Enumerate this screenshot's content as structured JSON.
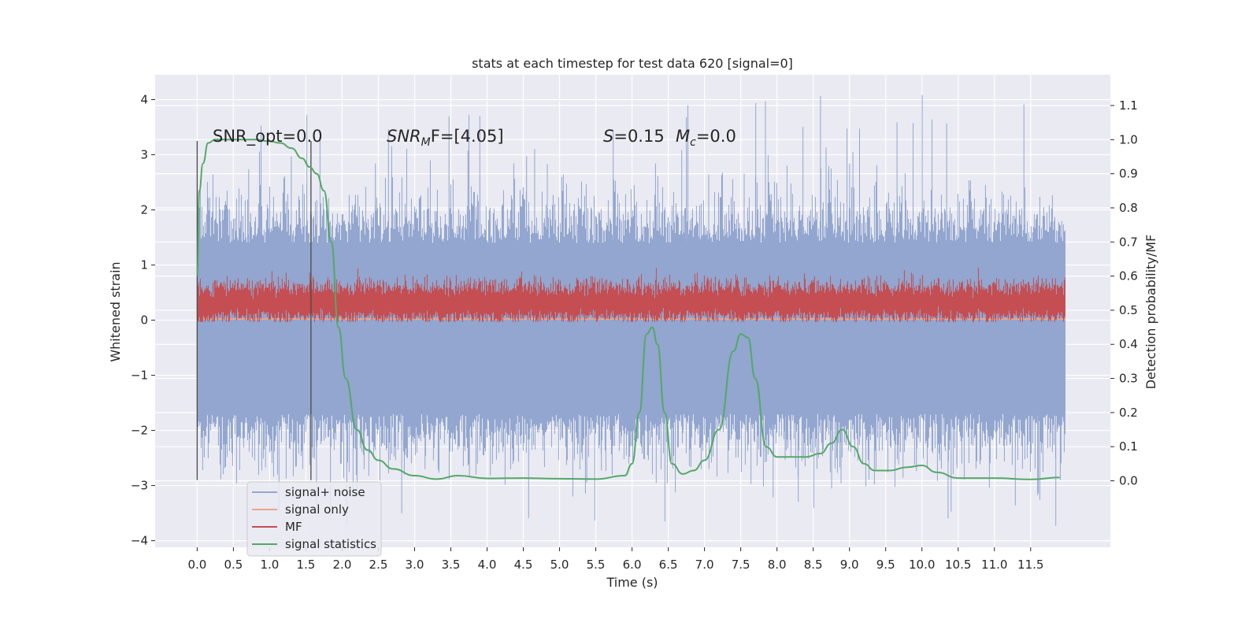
{
  "chart_data": {
    "type": "line",
    "title": "stats at each timestep for test data 620 [signal=0]",
    "xlabel": "Time (s)",
    "ylabel": "Whitened strain",
    "ylabel_right": "Detection probability/MF",
    "xlim": [
      -0.58,
      12.6
    ],
    "ylim": [
      -4.12,
      4.45
    ],
    "ylim_right": [
      -0.195,
      1.19
    ],
    "x_ticks": [
      0.0,
      0.5,
      1.0,
      1.5,
      2.0,
      2.5,
      3.0,
      3.5,
      4.0,
      4.5,
      5.0,
      5.5,
      6.0,
      6.5,
      7.0,
      7.5,
      8.0,
      8.5,
      9.0,
      9.5,
      10.0,
      10.5,
      11.0,
      11.5
    ],
    "y_ticks": [
      -4,
      -3,
      -2,
      -1,
      0,
      1,
      2,
      3,
      4
    ],
    "y_ticks_right": [
      0.0,
      0.1,
      0.2,
      0.3,
      0.4,
      0.5,
      0.6,
      0.7,
      0.8,
      0.9,
      1.0,
      1.1
    ],
    "grid": true,
    "legend_position": "lower-left",
    "annotations": {
      "snr_opt": "SNR_opt=0.0",
      "snr_mf_prefix": "SNR",
      "snr_mf_sub": "M",
      "snr_mf_rest": "F=[4.05]",
      "s_label": "S",
      "s_value": "=0.15",
      "mc_label": "M",
      "mc_sub": "c",
      "mc_value": "=0.0"
    },
    "vertical_markers_x": [
      0.0,
      1.57
    ],
    "series": [
      {
        "name": "signal+ noise",
        "color": "#92a6cf",
        "kind": "noise",
        "x_range": [
          0.0,
          11.98
        ],
        "typical_range": [
          -1.7,
          1.4
        ],
        "extremes_range": [
          -3.75,
          4.1
        ]
      },
      {
        "name": "signal only",
        "color": "#e8a58b",
        "kind": "flat",
        "x_range": [
          0.0,
          11.98
        ],
        "value": 0.02
      },
      {
        "name": "MF",
        "color": "#c44e52",
        "kind": "noise",
        "x_range": [
          0.0,
          11.98
        ],
        "typical_range": [
          0.0,
          0.75
        ],
        "extremes_range": [
          -0.03,
          1.0
        ]
      },
      {
        "name": "signal statistics",
        "color": "#55a868",
        "kind": "line",
        "axis": "right",
        "x": [
          0.0,
          0.03,
          0.08,
          0.15,
          0.25,
          0.4,
          0.6,
          0.8,
          1.0,
          1.15,
          1.3,
          1.45,
          1.55,
          1.65,
          1.75,
          1.85,
          1.95,
          2.05,
          2.2,
          2.35,
          2.5,
          2.7,
          3.0,
          3.3,
          3.6,
          4.0,
          4.5,
          5.0,
          5.5,
          5.9,
          6.0,
          6.1,
          6.2,
          6.28,
          6.35,
          6.45,
          6.55,
          6.7,
          6.85,
          7.0,
          7.2,
          7.4,
          7.5,
          7.6,
          7.7,
          7.85,
          8.0,
          8.2,
          8.4,
          8.6,
          8.75,
          8.9,
          9.05,
          9.2,
          9.35,
          9.55,
          9.8,
          10.0,
          10.2,
          10.5,
          11.0,
          11.5,
          11.9
        ],
        "y": [
          0.6,
          0.85,
          0.93,
          0.99,
          1.0,
          1.0,
          1.0,
          1.0,
          0.995,
          0.99,
          0.975,
          0.945,
          0.92,
          0.9,
          0.85,
          0.7,
          0.45,
          0.3,
          0.15,
          0.09,
          0.06,
          0.035,
          0.015,
          0.005,
          0.015,
          0.007,
          0.008,
          0.006,
          0.005,
          0.015,
          0.05,
          0.2,
          0.43,
          0.45,
          0.4,
          0.2,
          0.05,
          0.02,
          0.03,
          0.06,
          0.15,
          0.38,
          0.43,
          0.42,
          0.3,
          0.1,
          0.07,
          0.07,
          0.07,
          0.08,
          0.11,
          0.15,
          0.1,
          0.05,
          0.03,
          0.03,
          0.04,
          0.045,
          0.025,
          0.008,
          0.008,
          0.004,
          0.01
        ]
      }
    ]
  }
}
